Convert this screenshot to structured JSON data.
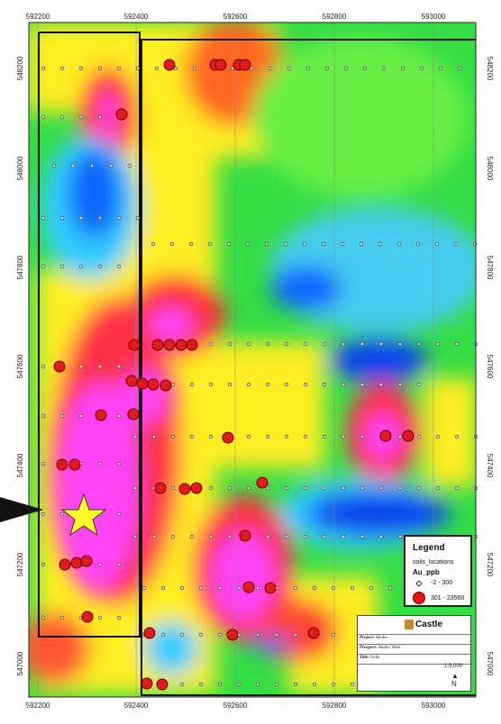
{
  "map": {
    "x_ticks": [
      "592200",
      "592400",
      "592600",
      "592800",
      "593000"
    ],
    "y_ticks": [
      "548200",
      "548000",
      "547800",
      "547600",
      "547400",
      "547200",
      "547000"
    ]
  },
  "legend": {
    "title": "Legend",
    "layer": "soils_locations",
    "field": "Au_ppb",
    "classes": [
      {
        "label": "-2 - 300",
        "color": "#dddddd"
      },
      {
        "label": "301 - 23560",
        "color": "#e31a1c"
      }
    ]
  },
  "title_block": {
    "company": "Castle",
    "project_label": "Project:",
    "project_value": "Akoko",
    "prospect_label": "Prospect:",
    "prospect_value": "Akoko West",
    "title_label": "Title:",
    "title_value": "Soils",
    "scale": "1:5,000",
    "north": "N"
  },
  "colors": {
    "high": "#ff33ff",
    "mid_high": "#ff3333",
    "mid": "#ffee00",
    "low_mid": "#33dd33",
    "low": "#33ccff",
    "very_low": "#1166ff",
    "sample_high": "#e31a1c",
    "target_star": "#ffff22"
  },
  "icons": [
    "target-star-icon",
    "arrow-pointer-icon",
    "north-arrow-icon"
  ]
}
